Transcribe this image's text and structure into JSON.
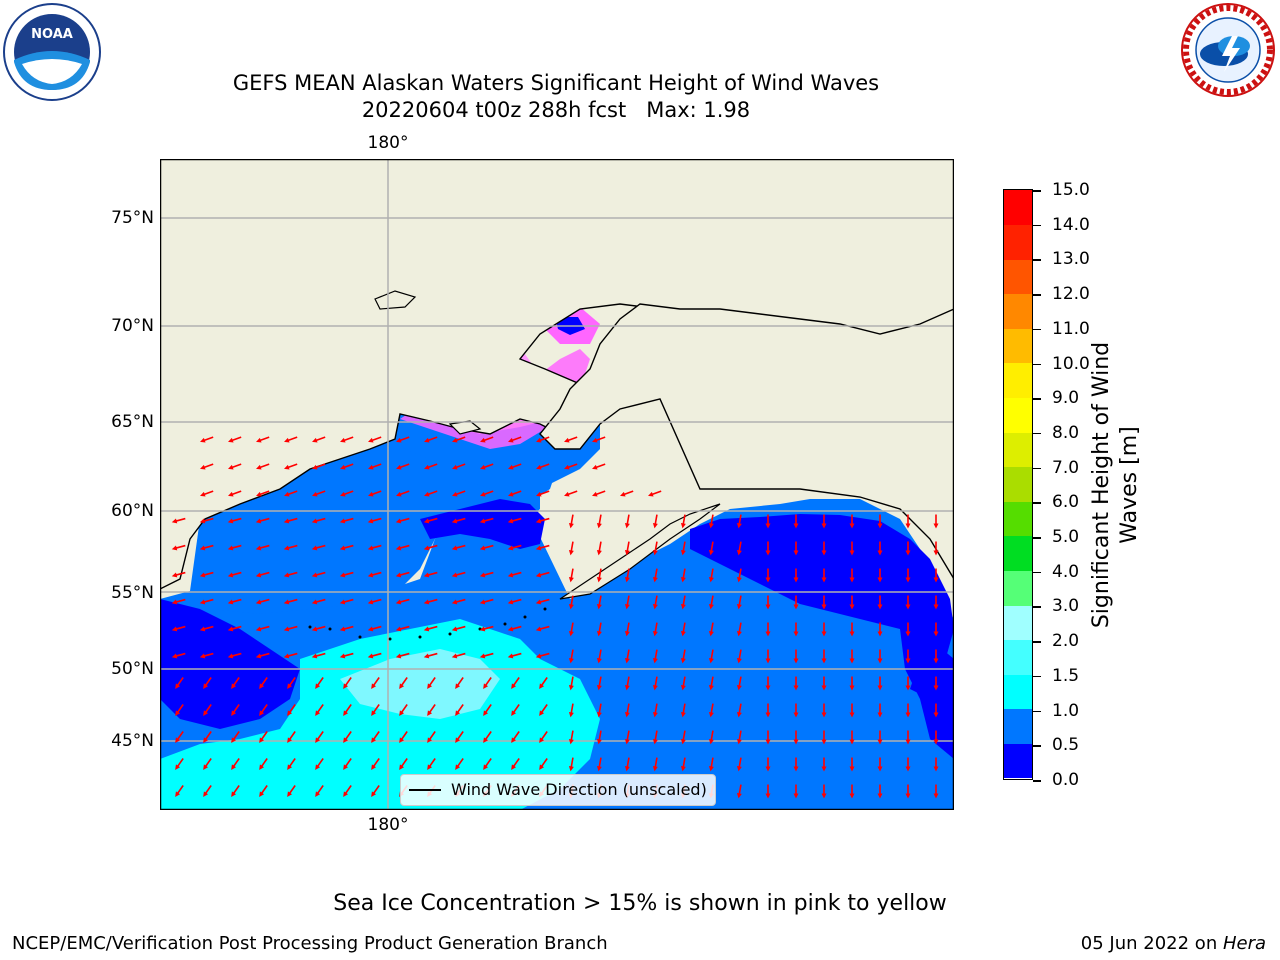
{
  "header": {
    "title_line1": "GEFS MEAN Alaskan Waters Significant Height of Wind Waves",
    "title_line2": "20220604 t00z 288h fcst   Max: 1.98"
  },
  "logos": {
    "left": {
      "icon": "noaa-logo-icon",
      "text": "NOAA"
    },
    "right": {
      "icon": "nws-logo-icon",
      "text": "NATIONAL WEATHER SERVICE"
    }
  },
  "map": {
    "lat_labels": [
      "75°N",
      "70°N",
      "65°N",
      "60°N",
      "55°N",
      "50°N",
      "45°N"
    ],
    "lon_label_top": "180°",
    "lon_label_bottom": "180°",
    "legend_label": "Wind Wave Direction (unscaled)",
    "colors": {
      "land": "#efefde",
      "deep_blue": "#0000ff",
      "mid_blue": "#0077ff",
      "cyan": "#00ffff",
      "arrow": "#ff0000",
      "ice_pink": "#ff66ff",
      "ice_yellow": "#ffee00"
    }
  },
  "colorbar": {
    "label": "Significant Height of Wind\nWaves [m]",
    "ticks": [
      "15.0",
      "14.0",
      "13.0",
      "12.0",
      "11.0",
      "10.0",
      "9.0",
      "8.0",
      "7.0",
      "6.0",
      "5.0",
      "4.0",
      "3.0",
      "2.0",
      "1.5",
      "1.0",
      "0.5",
      "0.0"
    ],
    "colors": [
      "#0000ff",
      "#0077ff",
      "#00ffff",
      "#44ffff",
      "#a0ffff",
      "#55ff77",
      "#00dd22",
      "#55dd00",
      "#aadd00",
      "#ddee00",
      "#ffff00",
      "#ffee00",
      "#ffbb00",
      "#ff8800",
      "#ff5500",
      "#ff2200",
      "#ff0000"
    ]
  },
  "note": "Sea Ice Concentration > 15% is shown in pink to yellow",
  "footer": {
    "left": "NCEP/EMC/Verification Post Processing Product Generation Branch",
    "right_date": "05 Jun 2022 on ",
    "right_host": "Hera"
  }
}
